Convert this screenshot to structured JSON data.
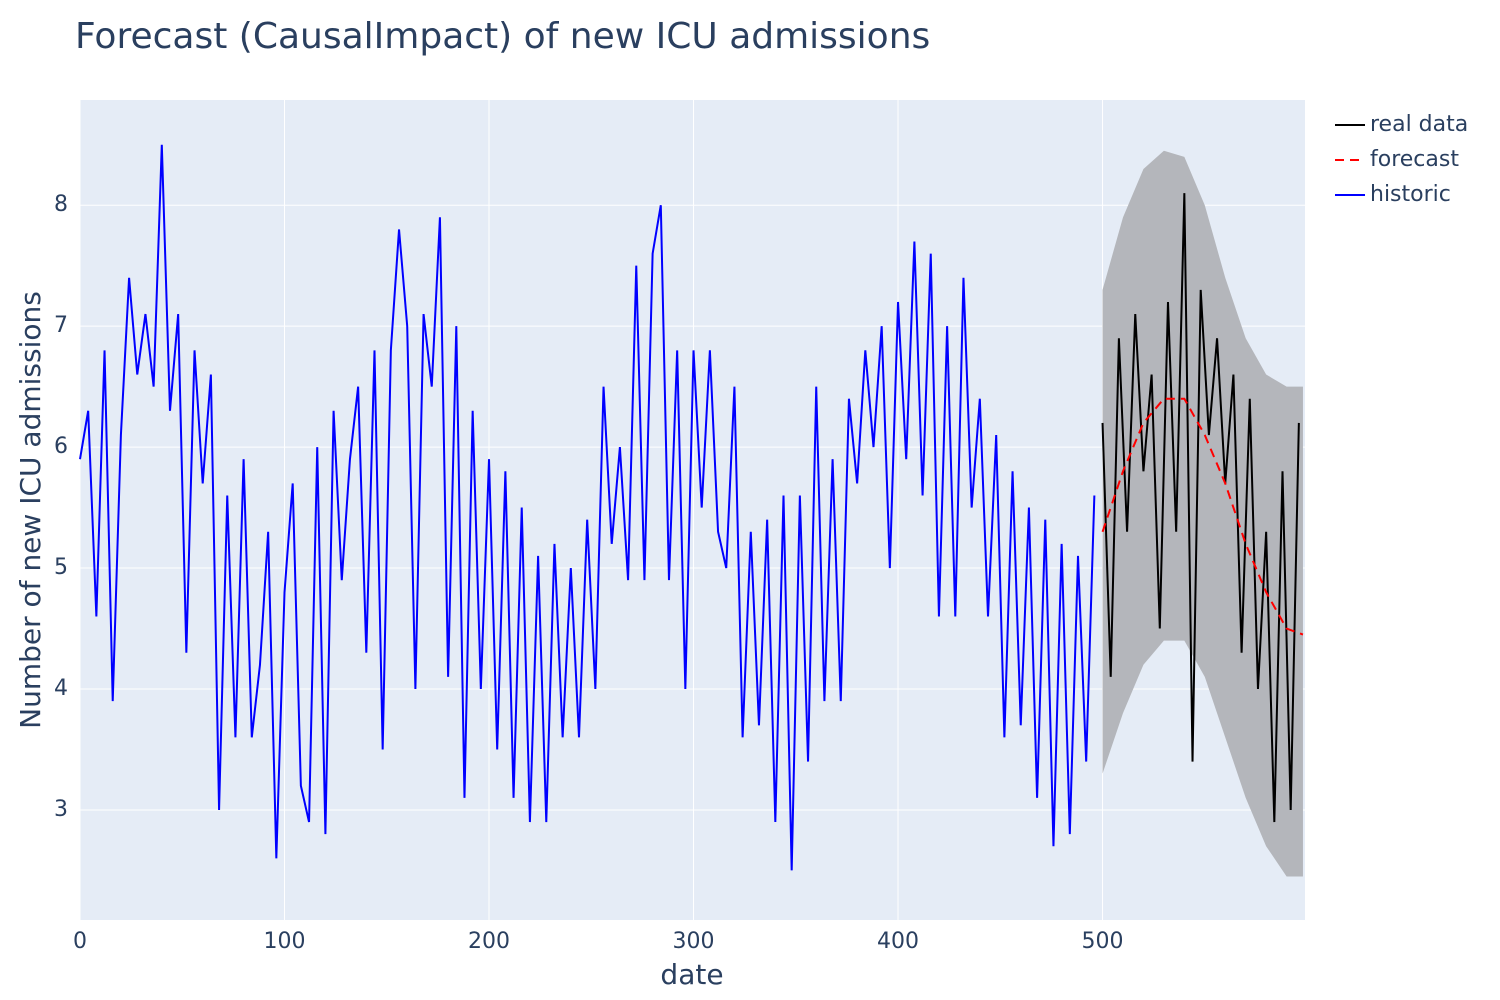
{
  "chart_data": {
    "type": "line",
    "title": "Forecast (CausalImpact) of new ICU admissions",
    "x_label": "date",
    "y_label": "Number of new ICU admissions",
    "xlim": [
      0,
      599
    ],
    "ylim": [
      2.09,
      8.87
    ],
    "xticks": [
      0,
      100,
      200,
      300,
      400,
      500
    ],
    "yticks": [
      3,
      4,
      5,
      6,
      7,
      8
    ],
    "grid": true,
    "legend": "outside-right",
    "band": {
      "color": "#b4b6bb",
      "x": [
        500,
        510,
        520,
        530,
        540,
        550,
        560,
        570,
        580,
        590,
        598
      ],
      "lower": [
        3.3,
        3.8,
        4.2,
        4.4,
        4.4,
        4.1,
        3.6,
        3.1,
        2.7,
        2.45,
        2.45
      ],
      "upper": [
        7.3,
        7.9,
        8.3,
        8.45,
        8.4,
        8.0,
        7.4,
        6.9,
        6.6,
        6.5,
        6.5
      ]
    },
    "series": [
      {
        "name": "real data",
        "color": "#000000",
        "dash": "solid",
        "x": [
          500,
          504,
          508,
          512,
          516,
          520,
          524,
          528,
          532,
          536,
          540,
          544,
          548,
          552,
          556,
          560,
          564,
          568,
          572,
          576,
          580,
          584,
          588,
          592,
          596
        ],
        "values": [
          6.2,
          4.1,
          6.9,
          5.3,
          7.1,
          5.8,
          6.6,
          4.5,
          7.2,
          5.3,
          8.1,
          3.4,
          7.3,
          6.1,
          6.9,
          5.7,
          6.6,
          4.3,
          6.4,
          4.0,
          5.3,
          2.9,
          5.8,
          3.0,
          6.2
        ]
      },
      {
        "name": "forecast",
        "color": "#ff0000",
        "dash": "dash",
        "x": [
          500,
          510,
          520,
          530,
          540,
          550,
          560,
          570,
          580,
          590,
          598
        ],
        "values": [
          5.3,
          5.8,
          6.2,
          6.4,
          6.4,
          6.1,
          5.7,
          5.2,
          4.8,
          4.5,
          4.45
        ]
      },
      {
        "name": "historic",
        "color": "#0000ff",
        "dash": "solid",
        "x": [
          0,
          4,
          8,
          12,
          16,
          20,
          24,
          28,
          32,
          36,
          40,
          44,
          48,
          52,
          56,
          60,
          64,
          68,
          72,
          76,
          80,
          84,
          88,
          92,
          96,
          100,
          104,
          108,
          112,
          116,
          120,
          124,
          128,
          132,
          136,
          140,
          144,
          148,
          152,
          156,
          160,
          164,
          168,
          172,
          176,
          180,
          184,
          188,
          192,
          196,
          200,
          204,
          208,
          212,
          216,
          220,
          224,
          228,
          232,
          236,
          240,
          244,
          248,
          252,
          256,
          260,
          264,
          268,
          272,
          276,
          280,
          284,
          288,
          292,
          296,
          300,
          304,
          308,
          312,
          316,
          320,
          324,
          328,
          332,
          336,
          340,
          344,
          348,
          352,
          356,
          360,
          364,
          368,
          372,
          376,
          380,
          384,
          388,
          392,
          396,
          400,
          404,
          408,
          412,
          416,
          420,
          424,
          428,
          432,
          436,
          440,
          444,
          448,
          452,
          456,
          460,
          464,
          468,
          472,
          476,
          480,
          484,
          488,
          492,
          496
        ],
        "values": [
          5.9,
          6.3,
          4.6,
          6.8,
          3.9,
          6.1,
          7.4,
          6.6,
          7.1,
          6.5,
          8.5,
          6.3,
          7.1,
          4.3,
          6.8,
          5.7,
          6.6,
          3.0,
          5.6,
          3.6,
          5.9,
          3.6,
          4.2,
          5.3,
          2.6,
          4.8,
          5.7,
          3.2,
          2.9,
          6.0,
          2.8,
          6.3,
          4.9,
          5.9,
          6.5,
          4.3,
          6.8,
          3.5,
          6.8,
          7.8,
          7.0,
          4.0,
          7.1,
          6.5,
          7.9,
          4.1,
          7.0,
          3.1,
          6.3,
          4.0,
          5.9,
          3.5,
          5.8,
          3.1,
          5.5,
          2.9,
          5.1,
          2.9,
          5.2,
          3.6,
          5.0,
          3.6,
          5.4,
          4.0,
          6.5,
          5.2,
          6.0,
          4.9,
          7.5,
          4.9,
          7.6,
          8.0,
          4.9,
          6.8,
          4.0,
          6.8,
          5.5,
          6.8,
          5.3,
          5.0,
          6.5,
          3.6,
          5.3,
          3.7,
          5.4,
          2.9,
          5.6,
          2.5,
          5.6,
          3.4,
          6.5,
          3.9,
          5.9,
          3.9,
          6.4,
          5.7,
          6.8,
          6.0,
          7.0,
          5.0,
          7.2,
          5.9,
          7.7,
          5.6,
          7.6,
          4.6,
          7.0,
          4.6,
          7.4,
          5.5,
          6.4,
          4.6,
          6.1,
          3.6,
          5.8,
          3.7,
          5.5,
          3.1,
          5.4,
          2.7,
          5.2,
          2.8,
          5.1,
          3.4,
          5.6
        ]
      }
    ]
  }
}
